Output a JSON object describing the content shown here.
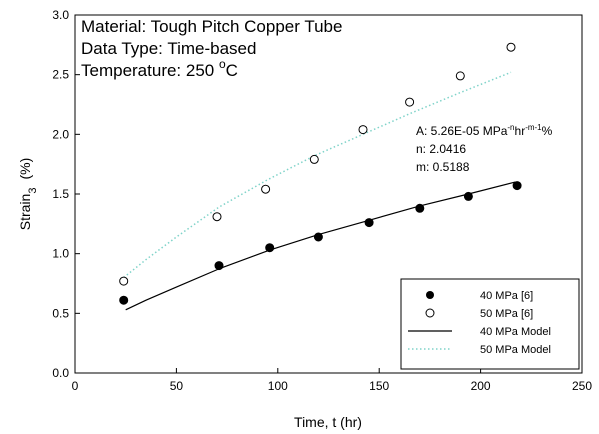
{
  "chart_data": {
    "type": "scatter",
    "annotations": {
      "material": "Material: Tough Pitch Copper Tube",
      "data_type": "Data Type: Time-based",
      "temperature_prefix": "Temperature: 250 ",
      "temperature_degree": "o",
      "temperature_unit": "C"
    },
    "parameters": {
      "a_prefix": "A: 5.26E-05 MPa",
      "a_sup1": "-n",
      "a_mid": "hr",
      "a_sup2": "-m-1",
      "a_suffix": "%",
      "n": "n: 2.0416",
      "m": "m: 0.5188"
    },
    "xlabel": "Time, t (hr)",
    "ylabel_main": "Strain",
    "ylabel_sub": "3",
    "ylabel_unit": "(%)",
    "xlim": [
      0,
      250
    ],
    "ylim": [
      0,
      3
    ],
    "xticks": [
      0,
      50,
      100,
      150,
      200,
      250
    ],
    "yticks": [
      0.0,
      0.5,
      1.0,
      1.5,
      2.0,
      2.5,
      3.0
    ],
    "xtick_labels": [
      "0",
      "50",
      "100",
      "150",
      "200",
      "250"
    ],
    "ytick_labels": [
      "0.0",
      "0.5",
      "1.0",
      "1.5",
      "2.0",
      "2.5",
      "3.0"
    ],
    "series": [
      {
        "name": "40 MPa [6]",
        "kind": "points",
        "marker": "filled-circle",
        "color": "#000000",
        "x": [
          24,
          71,
          96,
          120,
          145,
          170,
          194,
          218
        ],
        "y": [
          0.61,
          0.9,
          1.05,
          1.14,
          1.26,
          1.38,
          1.48,
          1.57
        ]
      },
      {
        "name": "50 MPa [6]",
        "kind": "points",
        "marker": "open-circle",
        "color": "#000000",
        "x": [
          24,
          70,
          94,
          118,
          142,
          165,
          190,
          215
        ],
        "y": [
          0.77,
          1.31,
          1.54,
          1.79,
          2.04,
          2.27,
          2.49,
          2.73
        ]
      },
      {
        "name": "40 MPa Model",
        "kind": "line",
        "style": "solid",
        "color": "#000000",
        "x": [
          25,
          35,
          50,
          72,
          96,
          120,
          145,
          170,
          194,
          217
        ],
        "y": [
          0.53,
          0.61,
          0.72,
          0.88,
          1.03,
          1.16,
          1.28,
          1.4,
          1.5,
          1.6
        ]
      },
      {
        "name": "50 MPa Model",
        "kind": "line",
        "style": "dotted",
        "color": "#7fd3c9",
        "x": [
          24,
          35,
          50,
          71,
          95,
          118,
          142,
          166,
          190,
          215
        ],
        "y": [
          0.8,
          0.95,
          1.14,
          1.39,
          1.62,
          1.82,
          2.0,
          2.18,
          2.35,
          2.52
        ]
      }
    ],
    "legend": {
      "position": "bottom-right",
      "entries": [
        "40 MPa [6]",
        "50 MPa [6]",
        "40 MPa Model",
        "50 MPa Model"
      ]
    }
  }
}
